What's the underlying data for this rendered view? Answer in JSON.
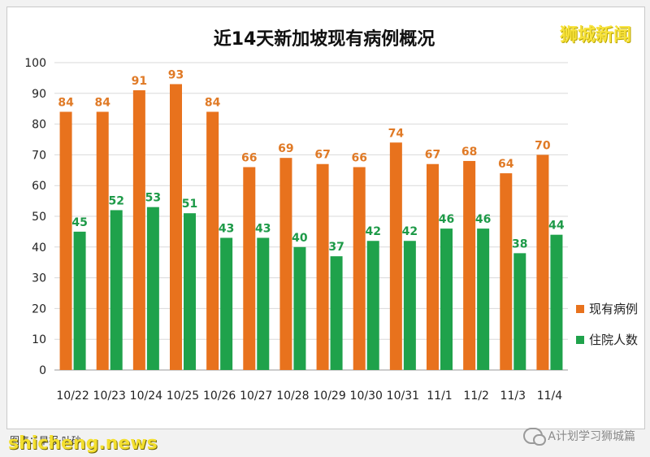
{
  "brand": "狮城新闻",
  "watermark": "shicheng.news",
  "source_line": "图表：早报·叶砂",
  "wechat_account": "A计划学习狮城篇",
  "colors": {
    "orange": "#e8721d",
    "green": "#1fa24b",
    "orange_label": "#e07a26",
    "green_label": "#1e9a48"
  },
  "chart_data": {
    "type": "bar",
    "title": "近14天新加坡现有病例概况",
    "categories": [
      "10/22",
      "10/23",
      "10/24",
      "10/25",
      "10/26",
      "10/27",
      "10/28",
      "10/29",
      "10/30",
      "10/31",
      "11/1",
      "11/2",
      "11/3",
      "11/4"
    ],
    "series": [
      {
        "name": "现有病例",
        "values": [
          84,
          84,
          91,
          93,
          84,
          66,
          69,
          67,
          66,
          74,
          67,
          68,
          64,
          70
        ]
      },
      {
        "name": "住院人数",
        "values": [
          45,
          52,
          53,
          51,
          43,
          43,
          40,
          37,
          42,
          42,
          46,
          46,
          38,
          44
        ]
      }
    ],
    "ylim": [
      0,
      100
    ],
    "yticks": [
      0,
      10,
      20,
      30,
      40,
      50,
      60,
      70,
      80,
      90,
      100
    ],
    "grid": true,
    "legend": "right"
  }
}
